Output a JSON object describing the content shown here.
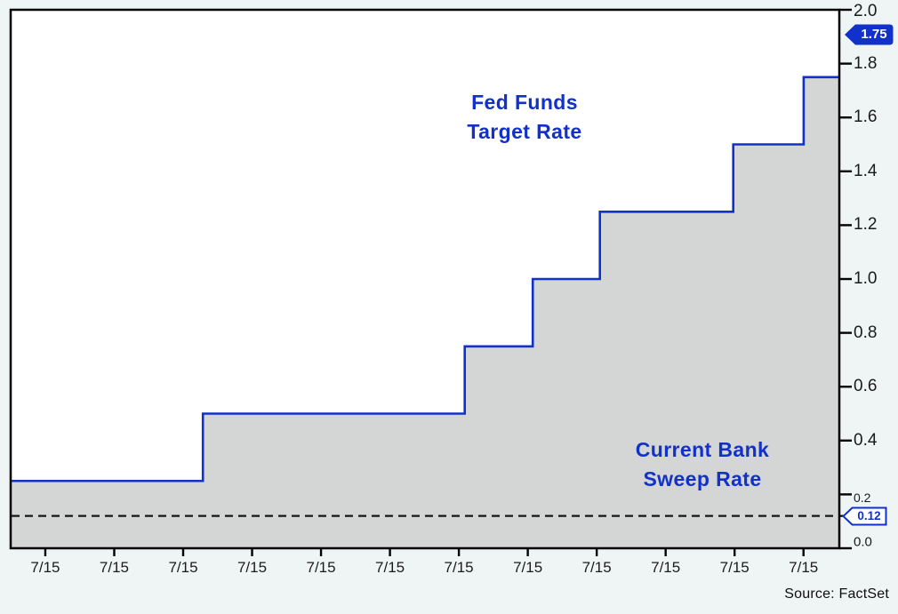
{
  "chart_data": {
    "type": "area",
    "subtype": "step-area",
    "series": [
      {
        "name": "Fed Funds Target Rate",
        "steps": [
          {
            "x_frac": 0.0,
            "value": 0.25
          },
          {
            "x_frac": 0.232,
            "value": 0.5
          },
          {
            "x_frac": 0.548,
            "value": 0.75
          },
          {
            "x_frac": 0.63,
            "value": 1.0
          },
          {
            "x_frac": 0.711,
            "value": 1.25
          },
          {
            "x_frac": 0.872,
            "value": 1.5
          },
          {
            "x_frac": 0.957,
            "value": 1.75
          }
        ],
        "end_x_frac": 1.0,
        "last_value": 1.75
      }
    ],
    "reference_line": {
      "name": "Current Bank Sweep Rate",
      "value": 0.12,
      "style": "dashed"
    },
    "y_axis": {
      "side": "right",
      "min": 0.0,
      "max": 2.0,
      "tick_interval": 0.2,
      "ticks": [
        {
          "label": "2.0",
          "value": 2.0
        },
        {
          "label": "1.8",
          "value": 1.8
        },
        {
          "label": "1.6",
          "value": 1.6
        },
        {
          "label": "1.4",
          "value": 1.4
        },
        {
          "label": "1.2",
          "value": 1.2
        },
        {
          "label": "1.0",
          "value": 1.0
        },
        {
          "label": "0.8",
          "value": 0.8
        },
        {
          "label": "0.6",
          "value": 0.6
        },
        {
          "label": "0.4",
          "value": 0.4
        },
        {
          "label": "0.2",
          "value": 0.2
        },
        {
          "label": "0.0",
          "value": 0.0
        }
      ],
      "small_labels": [
        "0.2",
        "0.0"
      ]
    },
    "x_axis": {
      "tick_labels": [
        "7/15",
        "7/15",
        "7/15",
        "7/15",
        "7/15",
        "7/15",
        "7/15",
        "7/15",
        "7/15",
        "7/15",
        "7/15",
        "7/15"
      ],
      "first_tick_frac": 0.0418,
      "tick_step_frac": 0.08318
    },
    "annotations": {
      "series_label": {
        "line1": "Fed Funds",
        "line2": "Target Rate"
      },
      "reference_label": {
        "line1": "Current Bank",
        "line2": "Sweep Rate"
      },
      "last_value_badge": "1.75",
      "reference_badge": "0.12"
    },
    "source": "Source: FactSet",
    "grid": false,
    "legend": "inline-labels",
    "colors": {
      "line": "#1230CA",
      "area_fill": "#D3D6D4",
      "reference_line": "#161616",
      "badge_fill": "#1230CA",
      "label_text": "#1230CA",
      "axis": "#000000",
      "plot_background": "#FFFFFF",
      "page_background": "#EFF4F5"
    }
  }
}
